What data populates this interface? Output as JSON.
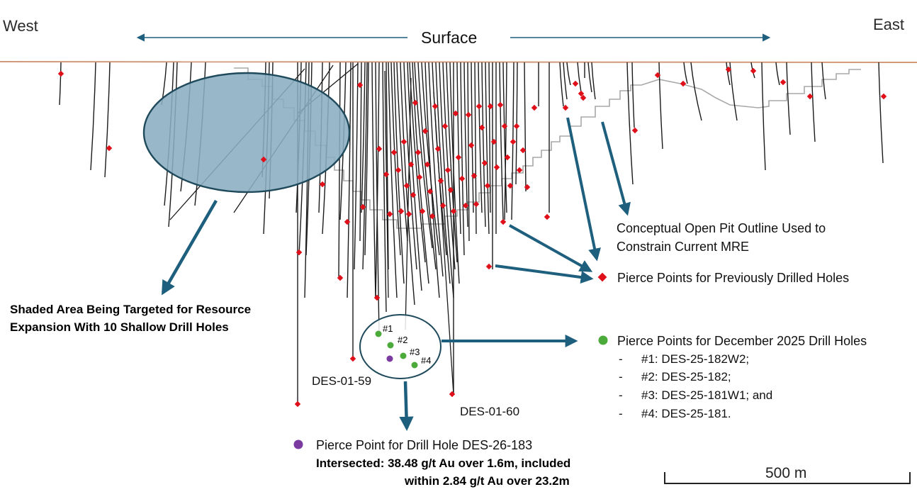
{
  "section": {
    "west_label": "West",
    "east_label": "East",
    "surface_label": "Surface",
    "scale_label": "500 m"
  },
  "annotations": {
    "open_pit": [
      "Conceptual Open Pit Outline Used to",
      "Constrain Current MRE"
    ],
    "previous_pierce": "Pierce Points for Previously Drilled Holes",
    "shaded_area": [
      "Shaded Area Being Targeted for Resource",
      "Expansion With 10 Shallow Drill Holes"
    ],
    "december_pierce": "Pierce Points for December 2025 Drill Holes",
    "december_list": [
      {
        "dash": "-",
        "text": "#1: DES-25-182W2;"
      },
      {
        "dash": "-",
        "text": "#2: DES-25-182;"
      },
      {
        "dash": "-",
        "text": "#3: DES-25-181W1; and"
      },
      {
        "dash": "-",
        "text": "#4: DES-25-181."
      }
    ],
    "des183_label": "Pierce Point for Drill Hole DES-26-183",
    "intersect": [
      "Intersected: 38.48 g/t Au over 1.6m, included",
      "within 2.84 g/t Au over 23.2m"
    ]
  },
  "holes": {
    "des_01_59": "DES-01-59",
    "des_01_60": "DES-01-60",
    "point_1": "#1",
    "point_2": "#2",
    "point_3": "#3",
    "point_4": "#4"
  },
  "colors": {
    "surface_line": "#d29a7a",
    "drill_trace": "#1a1a1a",
    "pit_outline": "#a8a8a8",
    "previous_marker": "#e0101a",
    "december_marker": "#4caa3a",
    "des183_marker": "#7a3aa0",
    "arrow": "#1f5f7e",
    "shaded_fill": "#8aaec2"
  },
  "icons": {
    "previous_marker": "red-diamond",
    "december_marker": "green-circle",
    "des183_marker": "purple-circle"
  }
}
